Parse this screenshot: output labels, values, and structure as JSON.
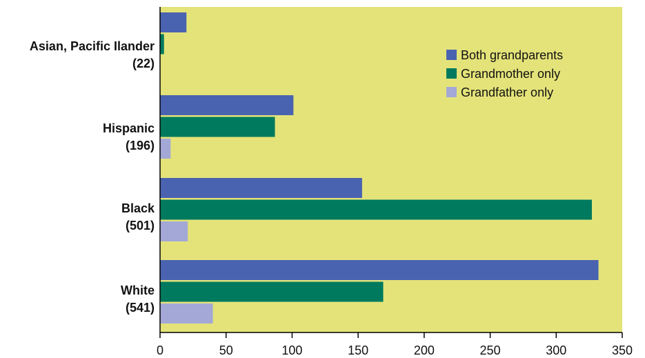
{
  "chart_data": {
    "type": "bar",
    "orientation": "horizontal",
    "categories": [
      {
        "name": "Asian, Pacific Ilander",
        "count": "(22)"
      },
      {
        "name": "Hispanic",
        "count": "(196)"
      },
      {
        "name": "Black",
        "count": "(501)"
      },
      {
        "name": "White",
        "count": "(541)"
      }
    ],
    "series": [
      {
        "name": "Both grandparents",
        "values": [
          20,
          101,
          153,
          332
        ],
        "color": "#4a63b0"
      },
      {
        "name": "Grandmother only",
        "values": [
          3,
          87,
          327,
          169
        ],
        "color": "#007a5e"
      },
      {
        "name": "Grandfather only",
        "values": [
          0,
          8,
          21,
          40
        ],
        "color": "#a3a8d6"
      }
    ],
    "xlim": [
      0,
      350
    ],
    "xticks": [
      "0",
      "50",
      "100",
      "150",
      "200",
      "250",
      "300",
      "350"
    ],
    "legend_position": "top-right",
    "background_color": "#e4e37a",
    "grid": false
  }
}
